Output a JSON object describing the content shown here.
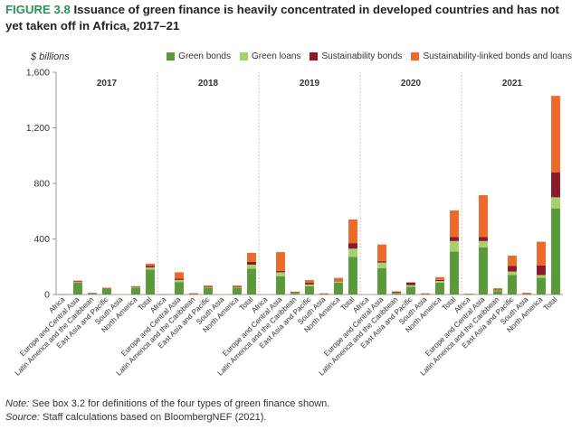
{
  "title": {
    "figure": "FIGURE 3.8",
    "text": "Issuance of green finance is heavily concentrated in developed countries and has not yet taken off in Africa, 2017–21"
  },
  "footer": {
    "note_label": "Note:",
    "note_text": "See box 3.2 for definitions of the four types of green finance shown.",
    "source_label": "Source:",
    "source_text": "Staff calculations based on BloombergNEF (2021)."
  },
  "chart_data": {
    "type": "bar",
    "stacked": true,
    "ylabel": "$ billions",
    "ylim": [
      0,
      1600
    ],
    "yticks": [
      0,
      400,
      800,
      1200,
      1600
    ],
    "ytick_labels": [
      "0",
      "400",
      "800",
      "1,200",
      "1,600"
    ],
    "grid": false,
    "legend_position": "top-right",
    "years": [
      "2017",
      "2018",
      "2019",
      "2020",
      "2021"
    ],
    "categories": [
      "Africa",
      "Europe and Central Asia",
      "Latin America and the Caribbean",
      "East Asia and Pacific",
      "South Asia",
      "North America",
      "Total"
    ],
    "series": [
      {
        "name": "Green bonds",
        "color": "#5a9a3a",
        "values": [
          [
            1,
            85,
            8,
            40,
            3,
            50,
            180
          ],
          [
            1,
            90,
            5,
            50,
            2,
            50,
            185
          ],
          [
            1,
            130,
            10,
            60,
            5,
            85,
            270
          ],
          [
            1,
            190,
            10,
            55,
            5,
            85,
            310
          ],
          [
            2,
            340,
            25,
            140,
            5,
            120,
            620
          ]
        ]
      },
      {
        "name": "Green loans",
        "color": "#a6d16e",
        "values": [
          [
            0,
            5,
            1,
            4,
            1,
            5,
            15
          ],
          [
            0,
            15,
            1,
            5,
            1,
            5,
            30
          ],
          [
            1,
            30,
            2,
            12,
            1,
            10,
            60
          ],
          [
            1,
            40,
            2,
            12,
            1,
            12,
            75
          ],
          [
            1,
            45,
            5,
            25,
            2,
            20,
            80
          ]
        ]
      },
      {
        "name": "Sustainability bonds",
        "color": "#8b1a2b",
        "values": [
          [
            0,
            5,
            1,
            2,
            0,
            2,
            12
          ],
          [
            0,
            10,
            2,
            3,
            0,
            3,
            20
          ],
          [
            0,
            10,
            5,
            12,
            1,
            5,
            40
          ],
          [
            0,
            10,
            8,
            20,
            1,
            8,
            30
          ],
          [
            1,
            30,
            5,
            40,
            2,
            70,
            180
          ]
        ]
      },
      {
        "name": "Sustainability-linked bonds and loans",
        "color": "#ee6a2a",
        "values": [
          [
            0,
            5,
            0,
            3,
            0,
            3,
            15
          ],
          [
            0,
            45,
            1,
            7,
            0,
            7,
            65
          ],
          [
            0,
            135,
            3,
            20,
            1,
            20,
            170
          ],
          [
            0,
            120,
            2,
            0,
            1,
            20,
            190
          ],
          [
            1,
            300,
            10,
            75,
            3,
            170,
            550
          ]
        ]
      }
    ]
  }
}
